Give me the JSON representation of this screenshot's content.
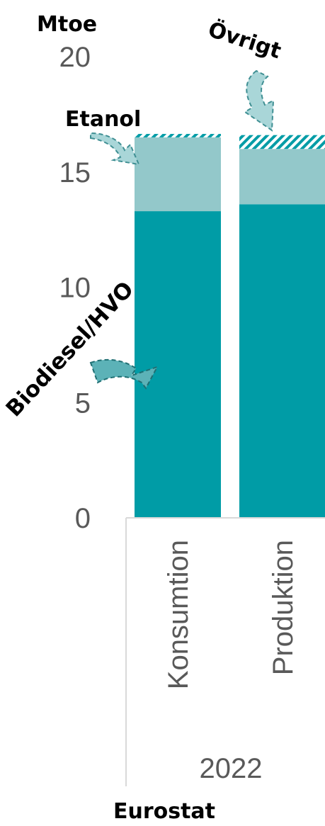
{
  "chart_data": {
    "type": "bar",
    "stacked": true,
    "ylabel": "Mtoe",
    "ylim": [
      0,
      20
    ],
    "yticks": [
      0,
      5,
      10,
      15,
      20
    ],
    "categories": [
      "Konsumtion",
      "Produktion"
    ],
    "group_label": "2022",
    "source": "Eurostat",
    "grid": false,
    "series": [
      {
        "name": "Biodiesel/HVO",
        "values": [
          13.3,
          13.6
        ],
        "color": "#009CA6",
        "pattern": "solid"
      },
      {
        "name": "Etanol",
        "values": [
          3.2,
          2.4
        ],
        "color": "#93C8CA",
        "pattern": "solid"
      },
      {
        "name": "Övrigt",
        "values": [
          0.15,
          0.6
        ],
        "color": "#009CA6",
        "pattern": "hatched"
      }
    ]
  }
}
